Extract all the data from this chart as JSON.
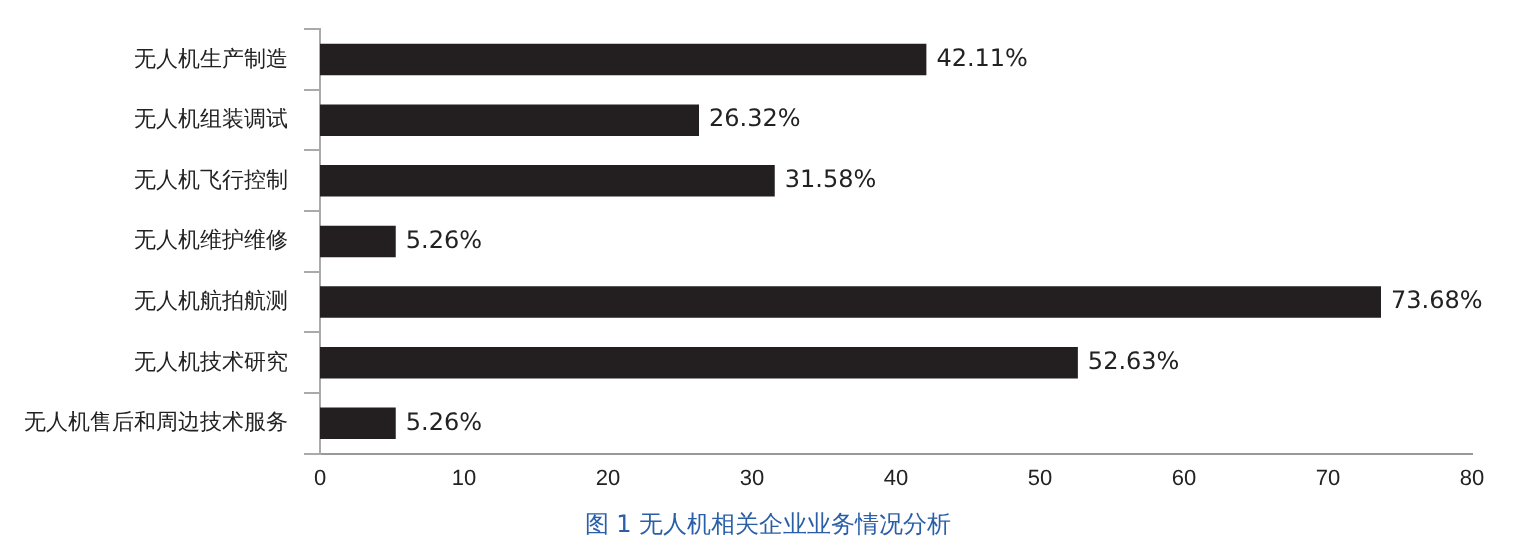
{
  "chart_data": {
    "type": "bar",
    "orientation": "horizontal",
    "title": "图 1 无人机相关企业业务情况分析",
    "categories": [
      "无人机生产制造",
      "无人机组装调试",
      "无人机飞行控制",
      "无人机维护维修",
      "无人机航拍航测",
      "无人机技术研究",
      "无人机售后和周边技术服务"
    ],
    "values": [
      42.11,
      26.32,
      31.58,
      5.26,
      73.68,
      52.63,
      5.26
    ],
    "value_labels": [
      "42.11%",
      "26.32%",
      "31.58%",
      "5.26%",
      "73.68%",
      "52.63%",
      "5.26%"
    ],
    "color": "#231f20",
    "xlim": [
      0,
      80
    ],
    "xticks": [
      0,
      10,
      20,
      30,
      40,
      50,
      60,
      70,
      80
    ],
    "grid": false,
    "legend": false
  }
}
